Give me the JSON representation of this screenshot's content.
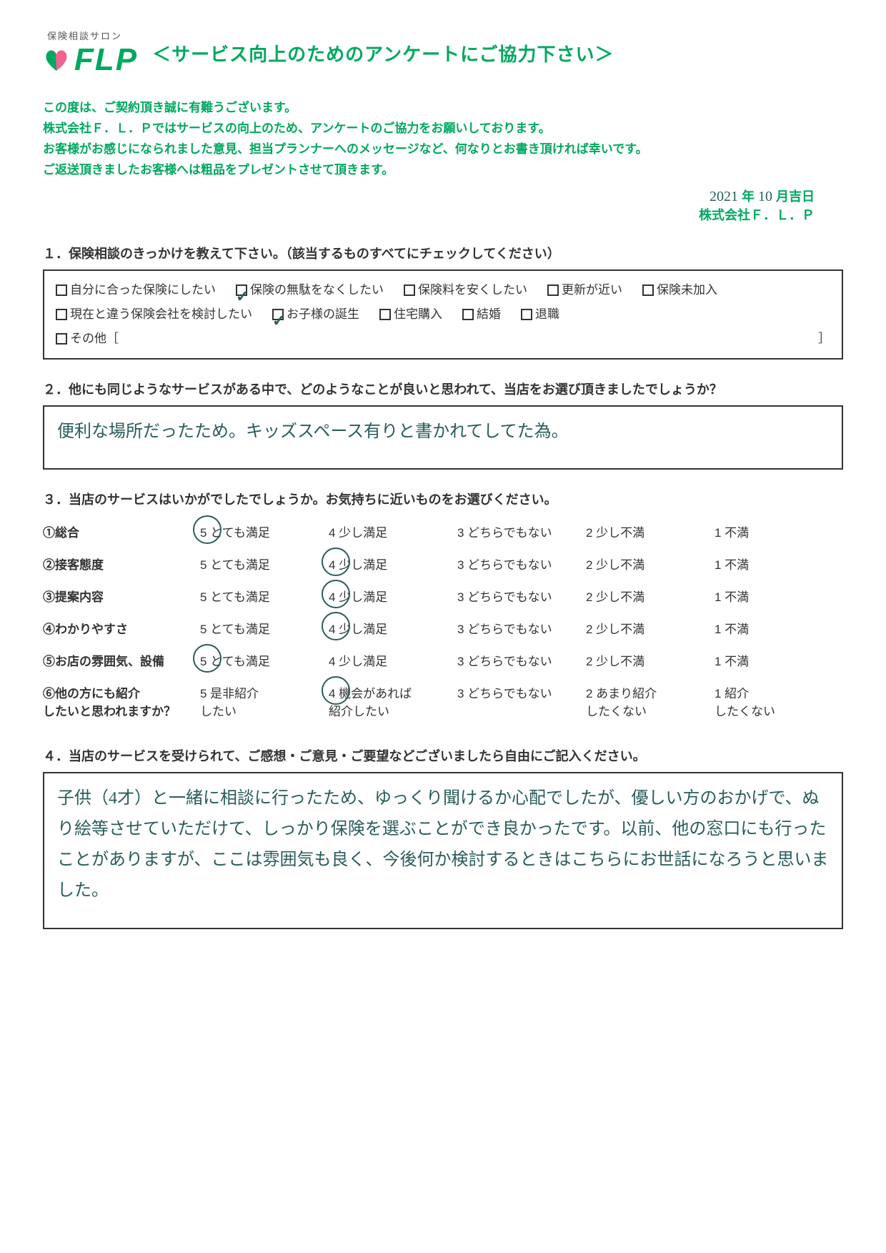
{
  "logo": {
    "tagline": "保険相談サロン",
    "text": "FLP",
    "heart_pink": "#f06292",
    "heart_green": "#00a85f"
  },
  "title": "＜サービス向上のためのアンケートにご協力下さい＞",
  "intro": [
    "この度は、ご契約頂き誠に有難うございます。",
    "株式会社Ｆ．Ｌ．Ｐではサービスの向上のため、アンケートのご協力をお願いしております。",
    "お客様がお感じになられました意見、担当プランナーへのメッセージなど、何なりとお書き頂ければ幸いです。",
    "ご返送頂きましたお客様へは粗品をプレゼントさせて頂きます。"
  ],
  "date": {
    "year_hand": "2021",
    "month_hand": "10",
    "suffix": "年　　月吉日"
  },
  "company": "株式会社Ｆ．Ｌ．Ｐ",
  "q1": {
    "label": "１．保険相談のきっかけを教えて下さい。（該当するものすべてにチェックしてください）",
    "options": [
      {
        "text": "自分に合った保険にしたい",
        "checked": false
      },
      {
        "text": "保険の無駄をなくしたい",
        "checked": true
      },
      {
        "text": "保険料を安くしたい",
        "checked": false
      },
      {
        "text": "更新が近い",
        "checked": false
      },
      {
        "text": "保険未加入",
        "checked": false
      },
      {
        "text": "現在と違う保険会社を検討したい",
        "checked": false
      },
      {
        "text": "お子様の誕生",
        "checked": true
      },
      {
        "text": "住宅購入",
        "checked": false
      },
      {
        "text": "結婚",
        "checked": false
      },
      {
        "text": "退職",
        "checked": false
      }
    ],
    "other_label": "その他［",
    "other_close": "］"
  },
  "q2": {
    "label": "２．他にも同じようなサービスがある中で、どのようなことが良いと思われて、当店をお選び頂きましたでしょうか？",
    "answer": "便利な場所だったため。キッズスペース有りと書かれてしてた為。"
  },
  "q3": {
    "label": "３．当店のサービスはいかがでしたでしょうか。お気持ちに近いものをお選びください。",
    "rows": [
      {
        "name": "①総合",
        "opts": [
          "5 とても満足",
          "4 少し満足",
          "3 どちらでもない",
          "2 少し不満",
          "1 不満"
        ],
        "selected": 0
      },
      {
        "name": "②接客態度",
        "opts": [
          "5 とても満足",
          "4 少し満足",
          "3 どちらでもない",
          "2 少し不満",
          "1 不満"
        ],
        "selected": 1
      },
      {
        "name": "③提案内容",
        "opts": [
          "5 とても満足",
          "4 少し満足",
          "3 どちらでもない",
          "2 少し不満",
          "1 不満"
        ],
        "selected": 1
      },
      {
        "name": "④わかりやすさ",
        "opts": [
          "5 とても満足",
          "4 少し満足",
          "3 どちらでもない",
          "2 少し不満",
          "1 不満"
        ],
        "selected": 1
      },
      {
        "name": "⑤お店の雰囲気、設備",
        "opts": [
          "5 とても満足",
          "4 少し満足",
          "3 どちらでもない",
          "2 少し不満",
          "1 不満"
        ],
        "selected": 0
      }
    ],
    "row6": {
      "name": "⑥他の方にも紹介",
      "name2": "したいと思われますか？",
      "opts": [
        {
          "a": "5 是非紹介",
          "b": "したい"
        },
        {
          "a": "4 機会があれば",
          "b": "紹介したい"
        },
        {
          "a": "3 どちらでもない",
          "b": ""
        },
        {
          "a": "2 あまり紹介",
          "b": "したくない"
        },
        {
          "a": "1 紹介",
          "b": "したくない"
        }
      ],
      "selected": 1
    }
  },
  "q4": {
    "label": "４．当店のサービスを受けられて、ご感想・ご意見・ご要望などございましたら自由にご記入ください。",
    "answer": "子供（4才）と一緒に相談に行ったため、ゆっくり聞けるか心配でしたが、優しい方のおかげで、ぬり絵等させていただけて、しっかり保険を選ぶことができ良かったです。以前、他の窓口にも行ったことがありますが、ここは雰囲気も良く、今後何か検討するときはこちらにお世話になろうと思いました。"
  },
  "colors": {
    "brand": "#00a85f",
    "hand": "#2a5c5c",
    "text": "#333333",
    "border": "#333333",
    "bg": "#ffffff"
  }
}
